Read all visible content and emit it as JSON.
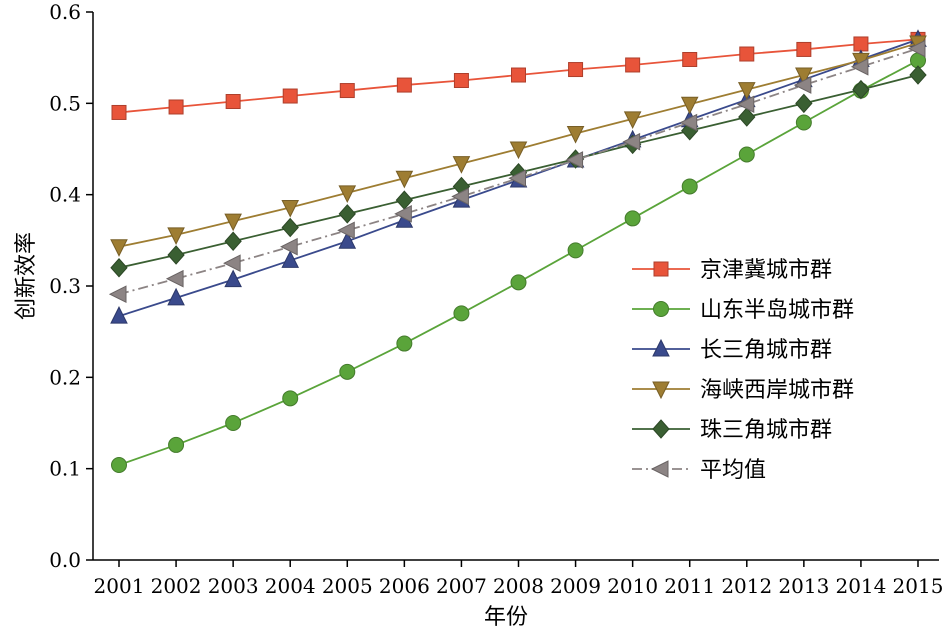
{
  "chart_data": {
    "type": "line",
    "title": "",
    "xlabel": "年份",
    "ylabel": "创新效率",
    "categories": [
      "2001",
      "2002",
      "2003",
      "2004",
      "2005",
      "2006",
      "2007",
      "2008",
      "2009",
      "2010",
      "2011",
      "2012",
      "2013",
      "2014",
      "2015"
    ],
    "ylim": [
      0,
      0.6
    ],
    "yticks": [
      "0.0",
      "0.1",
      "0.2",
      "0.3",
      "0.4",
      "0.5",
      "0.6"
    ],
    "grid": false,
    "legend_position": "right",
    "series": [
      {
        "name": "京津冀城市群",
        "color": "#e8543a",
        "marker": "square",
        "dash": "solid",
        "values": [
          0.49,
          0.496,
          0.502,
          0.508,
          0.514,
          0.52,
          0.525,
          0.531,
          0.537,
          0.542,
          0.548,
          0.554,
          0.559,
          0.565,
          0.57
        ]
      },
      {
        "name": "山东半岛城市群",
        "color": "#5aa43a",
        "marker": "circle",
        "dash": "solid",
        "values": [
          0.104,
          0.126,
          0.15,
          0.177,
          0.206,
          0.237,
          0.27,
          0.304,
          0.339,
          0.374,
          0.409,
          0.444,
          0.479,
          0.514,
          0.547
        ]
      },
      {
        "name": "长三角城市群",
        "color": "#3a4a8c",
        "marker": "triangle-up",
        "dash": "solid",
        "values": [
          0.267,
          0.287,
          0.307,
          0.328,
          0.349,
          0.372,
          0.394,
          0.416,
          0.438,
          0.46,
          0.482,
          0.504,
          0.526,
          0.548,
          0.57
        ]
      },
      {
        "name": "海峡西岸城市群",
        "color": "#9e7d32",
        "marker": "triangle-down",
        "dash": "solid",
        "values": [
          0.343,
          0.356,
          0.371,
          0.386,
          0.402,
          0.418,
          0.434,
          0.45,
          0.467,
          0.483,
          0.499,
          0.515,
          0.531,
          0.547,
          0.566
        ]
      },
      {
        "name": "珠三角城市群",
        "color": "#3a5f32",
        "marker": "diamond",
        "dash": "solid",
        "values": [
          0.32,
          0.334,
          0.349,
          0.364,
          0.379,
          0.394,
          0.409,
          0.424,
          0.439,
          0.455,
          0.47,
          0.485,
          0.5,
          0.515,
          0.531
        ]
      },
      {
        "name": "平均值",
        "color": "#8c8484",
        "marker": "triangle-left",
        "dash": "dashdot",
        "values": [
          0.291,
          0.308,
          0.325,
          0.343,
          0.361,
          0.379,
          0.398,
          0.418,
          0.438,
          0.458,
          0.479,
          0.499,
          0.52,
          0.54,
          0.56
        ]
      }
    ]
  }
}
